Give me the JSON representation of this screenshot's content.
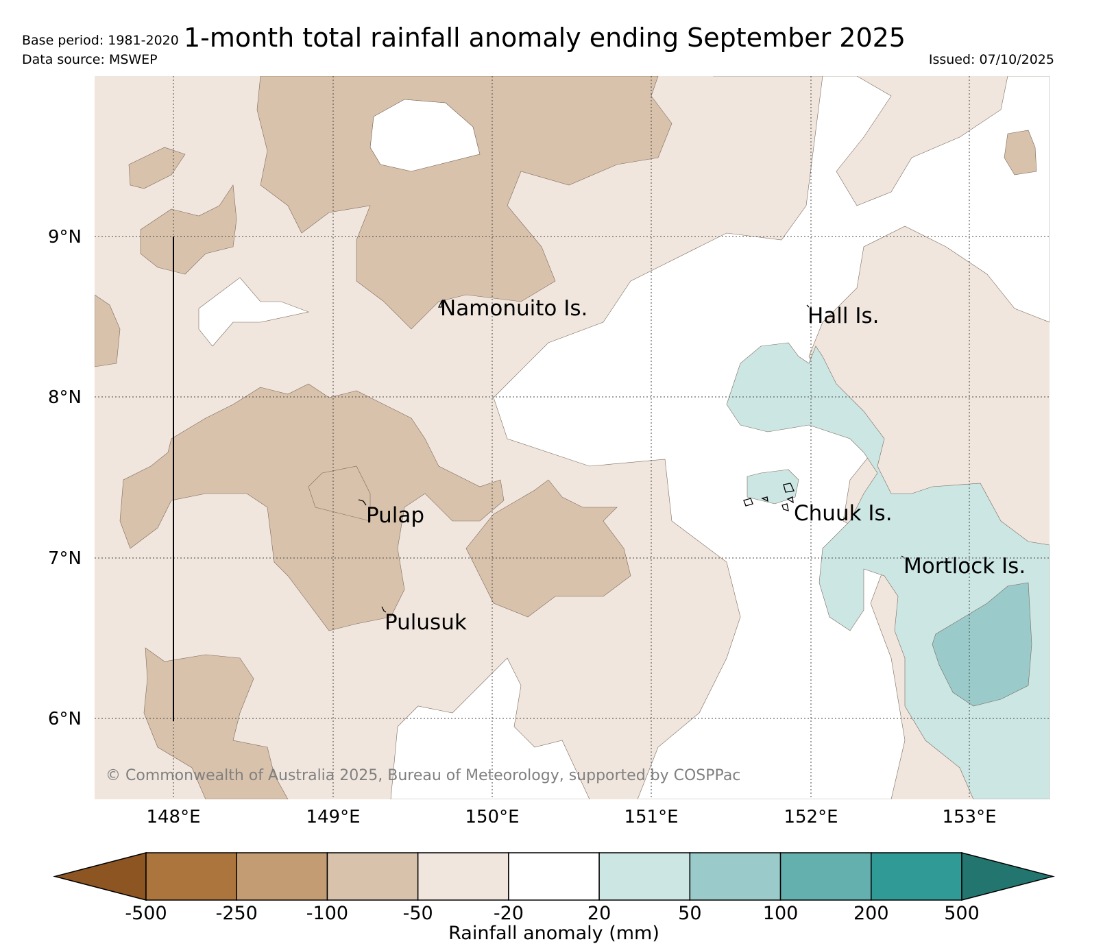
{
  "header": {
    "base_period": "Base period: 1981-2020",
    "data_source": "Data source: MSWEP",
    "title": "1-month total rainfall anomaly ending September 2025",
    "issued": "Issued: 07/10/2025"
  },
  "map": {
    "lat_labels": [
      "9°N",
      "8°N",
      "7°N",
      "6°N"
    ],
    "lon_labels": [
      "148°E",
      "149°E",
      "150°E",
      "151°E",
      "152°E",
      "153°E"
    ],
    "places": [
      {
        "name": "Namonuito Is.",
        "lon": 149.7,
        "lat": 8.6
      },
      {
        "name": "Hall Is.",
        "lon": 151.98,
        "lat": 8.55
      },
      {
        "name": "Pulap",
        "lon": 149.25,
        "lat": 7.33
      },
      {
        "name": "Chuuk Is.",
        "lon": 151.85,
        "lat": 7.4
      },
      {
        "name": "Mortlock Is.",
        "lon": 152.6,
        "lat": 6.98
      },
      {
        "name": "Pulusuk",
        "lon": 149.33,
        "lat": 6.63
      }
    ],
    "copyright": "© Commonwealth of Australia 2025, Bureau of Meteorology, supported by COSPPac",
    "colors": {
      "dry_50_100": "#d9c2ab",
      "dry_20_50": "#f0e6de",
      "neutral": "#ffffff",
      "wet_20_50": "#cce6e4",
      "wet_50_100": "#9acbca"
    }
  },
  "colorbar": {
    "label": "Rainfall anomaly (mm)",
    "ticks": [
      "-500",
      "-250",
      "-100",
      "-50",
      "-20",
      "20",
      "50",
      "100",
      "200",
      "500"
    ],
    "colors": [
      "#8c5522",
      "#ac753d",
      "#c49c73",
      "#d9c2ab",
      "#f0e6de",
      "#ffffff",
      "#cce6e4",
      "#9acbca",
      "#63b0af",
      "#309a96",
      "#23766f"
    ]
  }
}
